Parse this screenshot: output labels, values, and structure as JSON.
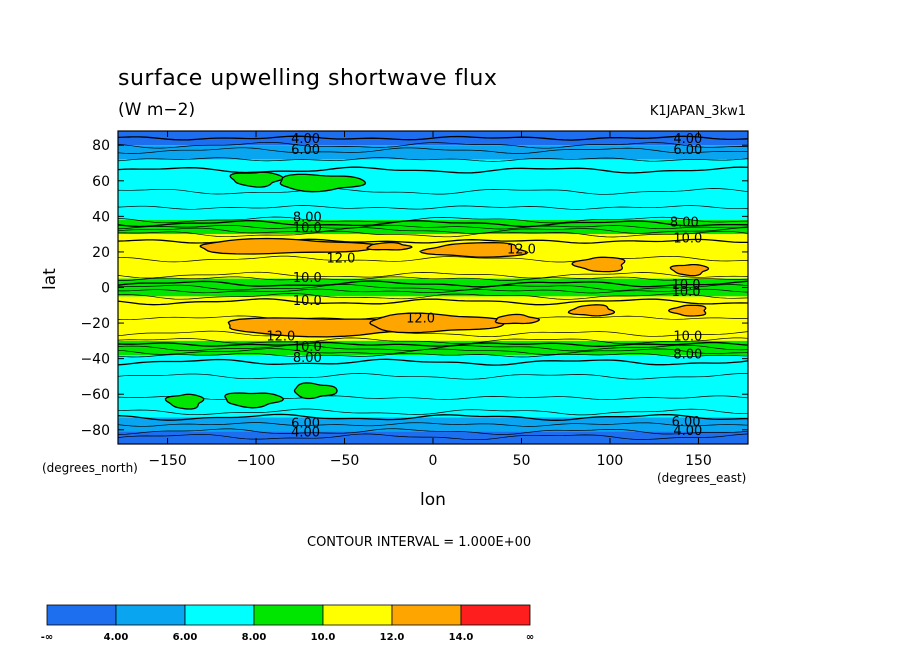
{
  "title": "surface upwelling shortwave flux",
  "units": "(W m−2)",
  "dataset": "K1JAPAN_3kw1",
  "contour_interval": "CONTOUR INTERVAL = 1.000E+00",
  "axes": {
    "ylabel": "lat",
    "ylabel_units": "(degrees_north)",
    "xlabel": "lon",
    "xlabel_units": "(degrees_east)"
  },
  "colors": {
    "lt4": "#1e6ef0",
    "4to6": "#0aa5f0",
    "6to8": "#00ffff",
    "8to10": "#00e600",
    "10to12": "#ffff00",
    "12to14": "#ffa500",
    "gt14": "#ff1e1e"
  },
  "chart_data": {
    "type": "heatmap",
    "title": "surface upwelling shortwave flux",
    "units": "W m-2",
    "xlabel": "lon",
    "ylabel": "lat",
    "xlim": [
      -178,
      178
    ],
    "ylim": [
      -88,
      88
    ],
    "xticks": [
      -150,
      -100,
      -50,
      0,
      50,
      100,
      150
    ],
    "yticks": [
      -80,
      -60,
      -40,
      -20,
      0,
      20,
      40,
      60,
      80
    ],
    "contour_interval": 1.0,
    "colorbar": {
      "labels": [
        "-∞",
        "4.00",
        "6.00",
        "8.00",
        "10.0",
        "12.0",
        "14.0",
        "∞"
      ],
      "colors": [
        "#1e6ef0",
        "#0aa5f0",
        "#00ffff",
        "#00e600",
        "#ffff00",
        "#ffa500",
        "#ff1e1e"
      ]
    },
    "bands": [
      {
        "lat_range": [
          80,
          88
        ],
        "level": "<4"
      },
      {
        "lat_range": [
          72,
          80
        ],
        "level": "4-6"
      },
      {
        "lat_range": [
          38,
          72
        ],
        "level": "6-8"
      },
      {
        "lat_range": [
          30,
          38
        ],
        "level": "8-10"
      },
      {
        "lat_range": [
          5,
          30
        ],
        "level": "10-12"
      },
      {
        "lat_range": [
          -5,
          5
        ],
        "level": "8-10"
      },
      {
        "lat_range": [
          -30,
          -5
        ],
        "level": "10-12"
      },
      {
        "lat_range": [
          -38,
          -30
        ],
        "level": "8-10"
      },
      {
        "lat_range": [
          -73,
          -38
        ],
        "level": "6-8"
      },
      {
        "lat_range": [
          -81,
          -73
        ],
        "level": "4-6"
      },
      {
        "lat_range": [
          -88,
          -81
        ],
        "level": "<4"
      }
    ],
    "patches": [
      {
        "lon": -100,
        "lat": 61,
        "rlon": 14,
        "rlat": 4,
        "level": "8-10"
      },
      {
        "lon": -64,
        "lat": 59,
        "rlon": 24,
        "rlat": 4.5,
        "level": "8-10"
      },
      {
        "lon": -85,
        "lat": 23,
        "rlon": 50,
        "rlat": 4,
        "level": "12-14"
      },
      {
        "lon": -25,
        "lat": 23,
        "rlon": 12,
        "rlat": 2,
        "level": "12-14"
      },
      {
        "lon": 25,
        "lat": 21,
        "rlon": 28,
        "rlat": 4,
        "level": "12-14"
      },
      {
        "lon": 95,
        "lat": 13,
        "rlon": 14,
        "rlat": 4,
        "level": "12-14"
      },
      {
        "lon": 145,
        "lat": 10,
        "rlon": 10,
        "rlat": 3,
        "level": "12-14"
      },
      {
        "lon": -60,
        "lat": -22,
        "rlon": 60,
        "rlat": 5,
        "level": "12-14"
      },
      {
        "lon": 0,
        "lat": -20,
        "rlon": 38,
        "rlat": 5,
        "level": "12-14"
      },
      {
        "lon": 47,
        "lat": -18,
        "rlon": 12,
        "rlat": 2.5,
        "level": "12-14"
      },
      {
        "lon": 90,
        "lat": -13,
        "rlon": 12,
        "rlat": 3,
        "level": "12-14"
      },
      {
        "lon": 145,
        "lat": -13,
        "rlon": 10,
        "rlat": 3,
        "level": "12-14"
      },
      {
        "lon": -140,
        "lat": -64,
        "rlon": 10,
        "rlat": 4,
        "level": "8-10"
      },
      {
        "lon": -102,
        "lat": -63,
        "rlon": 16,
        "rlat": 4,
        "level": "8-10"
      },
      {
        "lon": -67,
        "lat": -58,
        "rlon": 12,
        "rlat": 4,
        "level": "8-10"
      }
    ],
    "contour_labels": [
      {
        "text": "4.00",
        "lon": -72,
        "lat": 84
      },
      {
        "text": "6.00",
        "lon": -72,
        "lat": 78
      },
      {
        "text": "4.00",
        "lon": 144,
        "lat": 84
      },
      {
        "text": "6.00",
        "lon": 144,
        "lat": 78
      },
      {
        "text": "8.00",
        "lon": -71,
        "lat": 40
      },
      {
        "text": "10.0",
        "lon": -71,
        "lat": 34
      },
      {
        "text": "8.00",
        "lon": 142,
        "lat": 37
      },
      {
        "text": "10.0",
        "lon": 144,
        "lat": 28
      },
      {
        "text": "12.0",
        "lon": -52,
        "lat": 17
      },
      {
        "text": "12.0",
        "lon": 50,
        "lat": 22
      },
      {
        "text": "10.0",
        "lon": -71,
        "lat": 6
      },
      {
        "text": "10.0",
        "lon": -71,
        "lat": -7
      },
      {
        "text": "12.0",
        "lon": -7,
        "lat": -17
      },
      {
        "text": "12.0",
        "lon": -86,
        "lat": -27
      },
      {
        "text": "10.0",
        "lon": -71,
        "lat": -33
      },
      {
        "text": "8.00",
        "lon": -71,
        "lat": -39
      },
      {
        "text": "10.0",
        "lon": 144,
        "lat": -27
      },
      {
        "text": "8.00",
        "lon": 144,
        "lat": -37
      },
      {
        "text": "6.00",
        "lon": -72,
        "lat": -76
      },
      {
        "text": "4.00",
        "lon": -72,
        "lat": -81
      },
      {
        "text": "6.00",
        "lon": 143,
        "lat": -75
      },
      {
        "text": "4.00",
        "lon": 144,
        "lat": -80
      },
      {
        "text": "10.0",
        "lon": 143,
        "lat": 2
      },
      {
        "text": "10.0",
        "lon": 143,
        "lat": -2
      }
    ]
  }
}
